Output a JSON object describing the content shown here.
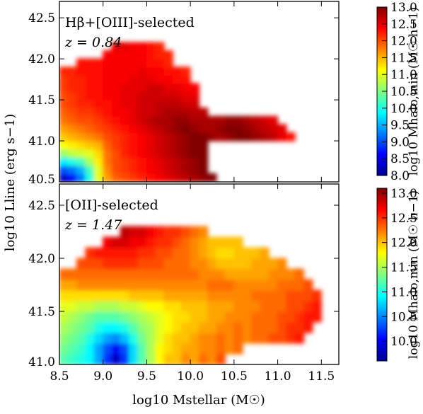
{
  "chart_data": [
    {
      "type": "heatmap",
      "panel_label": "Hβ+[OIII]-selected",
      "redshift_label": "z = 0.84",
      "xlabel": "log10 Mstellar (M☉)",
      "ylabel": "log10 Lline (erg s−1)",
      "xlim": [
        8.5,
        11.7
      ],
      "ylim": [
        40.5,
        42.7
      ],
      "x_ticks": [
        "8.5",
        "9.0",
        "9.5",
        "10.0",
        "10.5",
        "11.0",
        "11.5"
      ],
      "y_ticks": [
        "40.5",
        "41.0",
        "41.5",
        "42.0",
        "42.5"
      ],
      "colorbar": {
        "label": "log10 Mhalo,min (M☉ h−1)",
        "range": [
          8.0,
          13.0
        ],
        "ticks": [
          "8.0",
          "8.5",
          "9.0",
          "9.5",
          "10.0",
          "10.5",
          "11.0",
          "11.5",
          "12.0",
          "12.5",
          "13.0"
        ]
      },
      "grid_spec": {
        "x0": 8.5,
        "dx": 0.1,
        "y0": 40.5,
        "dy": 0.1
      },
      "rows": [
        [
          8.3,
          8.6,
          9.2,
          10.0,
          11.0,
          11.6,
          11.9,
          12.0,
          12.1,
          12.2,
          12.3,
          12.4,
          12.5,
          12.6,
          12.7,
          12.8,
          12.9,
          13.0
        ],
        [
          9.0,
          9.2,
          9.5,
          10.2,
          11.0,
          11.7,
          12.0,
          12.1,
          12.2,
          12.3,
          12.4,
          12.5,
          12.6,
          12.7,
          12.8,
          12.9,
          13.0
        ],
        [
          9.8,
          10.0,
          10.2,
          10.7,
          11.2,
          11.8,
          12.0,
          12.1,
          12.2,
          12.3,
          12.4,
          12.5,
          12.6,
          12.7,
          12.8,
          12.9,
          13.0
        ],
        [
          10.6,
          10.8,
          10.9,
          11.0,
          11.3,
          11.8,
          12.0,
          12.2,
          12.3,
          12.4,
          12.5,
          12.6,
          12.7,
          12.8,
          12.9,
          13.0,
          13.0
        ],
        [
          11.1,
          11.2,
          11.3,
          11.4,
          11.5,
          11.9,
          12.1,
          12.2,
          12.3,
          12.4,
          12.5,
          12.6,
          12.7,
          12.8,
          12.9,
          13.0,
          13.0
        ],
        [
          11.4,
          11.5,
          11.6,
          11.7,
          11.8,
          12.0,
          12.1,
          12.2,
          12.3,
          12.4,
          12.5,
          12.6,
          12.7,
          12.8,
          12.9,
          13.0,
          13.0,
          12.9,
          12.8,
          12.9,
          13.0,
          13.0,
          12.9,
          12.8,
          12.7,
          12.5,
          12.3
        ],
        [
          11.6,
          11.7,
          11.8,
          11.9,
          12.0,
          12.1,
          12.2,
          12.3,
          12.4,
          12.5,
          12.6,
          12.7,
          12.8,
          12.9,
          13.0,
          12.9,
          12.8,
          12.8,
          12.9,
          13.0,
          13.0,
          12.9,
          12.8,
          12.7,
          12.6,
          12.5
        ],
        [
          11.8,
          11.9,
          12.0,
          12.0,
          12.1,
          12.2,
          12.3,
          12.4,
          12.5,
          12.6,
          12.7,
          12.8,
          12.8,
          12.9,
          12.9,
          12.8,
          12.8,
          12.8,
          12.8,
          12.9,
          12.9,
          12.8,
          12.7,
          12.6,
          12.5
        ],
        [
          11.9,
          12.0,
          12.1,
          12.1,
          12.2,
          12.3,
          12.4,
          12.4,
          12.5,
          12.6,
          12.6,
          12.7,
          12.8,
          12.8,
          12.8,
          12.7,
          12.7
        ],
        [
          12.0,
          12.1,
          12.2,
          12.2,
          12.3,
          12.3,
          12.4,
          12.5,
          12.5,
          12.6,
          12.6,
          12.7,
          12.7,
          12.7,
          12.6,
          12.6
        ],
        [
          12.0,
          12.1,
          12.2,
          12.3,
          12.3,
          12.4,
          12.4,
          12.5,
          12.5,
          12.6,
          12.6,
          12.6,
          12.6,
          12.6,
          12.5,
          12.5
        ],
        [
          12.1,
          12.2,
          12.2,
          12.3,
          12.3,
          12.4,
          12.4,
          12.5,
          12.5,
          12.5,
          12.6,
          12.6,
          12.5,
          12.5,
          12.4,
          12.4
        ],
        [
          12.1,
          12.2,
          12.2,
          12.3,
          12.3,
          12.4,
          12.4,
          12.4,
          12.5,
          12.5,
          12.5,
          12.4,
          12.4,
          12.3,
          12.3
        ],
        [
          12.2,
          12.2,
          12.3,
          12.3,
          12.3,
          12.4,
          12.4,
          12.4,
          12.4,
          12.5,
          12.4,
          12.4,
          12.3,
          12.3,
          12.2
        ],
        [
          null,
          null,
          12.3,
          12.3,
          12.3,
          12.4,
          12.4,
          12.4,
          12.4,
          12.4,
          12.3,
          12.3,
          12.2
        ],
        [
          null,
          null,
          null,
          null,
          null,
          12.4,
          12.4,
          12.4,
          12.4,
          12.4,
          12.3,
          12.2,
          12.2
        ],
        [
          null,
          null,
          null,
          null,
          null,
          null,
          12.5,
          12.5,
          12.4,
          12.4,
          12.3,
          12.2
        ]
      ]
    },
    {
      "type": "heatmap",
      "panel_label": "[OII]-selected",
      "redshift_label": "z = 1.47",
      "xlabel": "log10 Mstellar (M☉)",
      "ylabel": "log10 Lline (erg s−1)",
      "xlim": [
        8.5,
        11.7
      ],
      "ylim": [
        41.0,
        42.7
      ],
      "x_ticks": [
        "8.5",
        "9.0",
        "9.5",
        "10.0",
        "10.5",
        "11.0",
        "11.5"
      ],
      "y_ticks": [
        "41.0",
        "41.5",
        "42.0",
        "42.5"
      ],
      "colorbar": {
        "label": "log10 Mhalo,min (M☉ h−1)",
        "range": [
          9.6,
          13.1
        ],
        "ticks": [
          "10.0",
          "10.5",
          "11.0",
          "11.5",
          "12.0",
          "12.5",
          "13.0"
        ]
      },
      "grid_spec": {
        "x0": 8.5,
        "dx": 0.1,
        "y0": 41.0,
        "dy": 0.1
      },
      "rows": [
        [
          11.2,
          11.1,
          11.0,
          10.9,
          10.6,
          10.2,
          9.8,
          10.2,
          10.8,
          11.2,
          11.5,
          11.8,
          12.0,
          12.0,
          12.2,
          12.1,
          12.3,
          12.2,
          12.4
        ],
        [
          11.3,
          11.2,
          11.1,
          10.9,
          10.6,
          10.3,
          10.0,
          10.3,
          10.8,
          11.2,
          11.5,
          11.8,
          11.9,
          12.0,
          12.1,
          12.1,
          12.2,
          12.2,
          12.3,
          12.2,
          12.3
        ],
        [
          11.4,
          11.3,
          11.2,
          11.0,
          10.8,
          10.6,
          10.5,
          10.7,
          11.0,
          11.3,
          11.5,
          11.7,
          11.9,
          12.0,
          12.0,
          12.1,
          12.2,
          12.2,
          12.3,
          12.2,
          12.3,
          12.2,
          12.3,
          12.3,
          12.4,
          12.4,
          12.5,
          12.6
        ],
        [
          11.5,
          11.4,
          11.3,
          11.2,
          11.0,
          10.9,
          10.9,
          11.0,
          11.2,
          11.4,
          11.5,
          11.7,
          11.8,
          11.9,
          12.0,
          12.0,
          12.1,
          12.1,
          12.2,
          12.2,
          12.3,
          12.2,
          12.3,
          12.3,
          12.3,
          12.4,
          12.5,
          12.5,
          12.6
        ],
        [
          11.6,
          11.5,
          11.4,
          11.3,
          11.2,
          11.2,
          11.2,
          11.3,
          11.4,
          11.5,
          11.6,
          11.7,
          11.8,
          11.9,
          11.9,
          12.0,
          12.0,
          12.1,
          12.1,
          12.2,
          12.2,
          12.2,
          12.3,
          12.3,
          12.3,
          12.4,
          12.4,
          12.5,
          12.6,
          12.6
        ],
        [
          11.7,
          11.7,
          11.6,
          11.6,
          11.5,
          11.5,
          11.5,
          11.6,
          11.6,
          11.7,
          11.8,
          11.8,
          11.9,
          11.9,
          12.0,
          12.0,
          12.0,
          12.1,
          12.1,
          12.1,
          12.2,
          12.2,
          12.2,
          12.3,
          12.3,
          12.3,
          12.4,
          12.4,
          12.5,
          12.6
        ],
        [
          11.9,
          11.9,
          11.9,
          11.9,
          11.9,
          11.9,
          11.9,
          11.9,
          12.0,
          12.0,
          12.0,
          12.0,
          12.1,
          12.1,
          12.1,
          12.1,
          12.1,
          12.2,
          12.2,
          12.2,
          12.2,
          12.2,
          12.3,
          12.3,
          12.3,
          12.3,
          12.4,
          12.4,
          12.4,
          12.5
        ],
        [
          12.1,
          12.1,
          12.2,
          12.2,
          12.2,
          12.2,
          12.2,
          12.2,
          12.2,
          12.2,
          12.2,
          12.2,
          12.2,
          12.2,
          12.2,
          12.2,
          12.2,
          12.3,
          12.3,
          12.3,
          12.2,
          12.2,
          12.2,
          12.2,
          12.2,
          12.3,
          12.3,
          12.3,
          12.4
        ],
        [
          12.3,
          12.3,
          12.3,
          12.3,
          12.3,
          12.3,
          12.3,
          12.3,
          12.3,
          12.3,
          12.3,
          12.3,
          12.3,
          12.3,
          12.3,
          12.3,
          12.2,
          12.2,
          12.2,
          12.1,
          12.1,
          12.1,
          12.1,
          12.1,
          12.2,
          12.2,
          12.2,
          12.3
        ],
        [
          null,
          null,
          12.4,
          12.4,
          12.4,
          12.5,
          12.5,
          12.5,
          12.5,
          12.4,
          12.4,
          12.4,
          12.3,
          12.3,
          12.3,
          12.2,
          12.2,
          12.1,
          12.0,
          12.0,
          12.0,
          12.0,
          12.1,
          12.1,
          12.1,
          12.2
        ],
        [
          null,
          null,
          null,
          12.5,
          12.6,
          12.6,
          12.6,
          12.6,
          12.6,
          12.5,
          12.5,
          12.4,
          12.4,
          12.3,
          12.3,
          12.2,
          12.1,
          12.0,
          11.9,
          11.9,
          12.0,
          12.0,
          12.0,
          12.1
        ],
        [
          null,
          null,
          null,
          null,
          null,
          12.7,
          12.8,
          12.8,
          12.7,
          12.7,
          12.6,
          12.5,
          12.5,
          12.4,
          12.3,
          12.2,
          12.1,
          12.0,
          12.0,
          12.0,
          12.0
        ],
        [
          null,
          null,
          null,
          null,
          null,
          null,
          null,
          12.9,
          12.8,
          12.8,
          12.7,
          12.6,
          12.5,
          12.5,
          12.4,
          12.3,
          12.2
        ]
      ]
    }
  ]
}
